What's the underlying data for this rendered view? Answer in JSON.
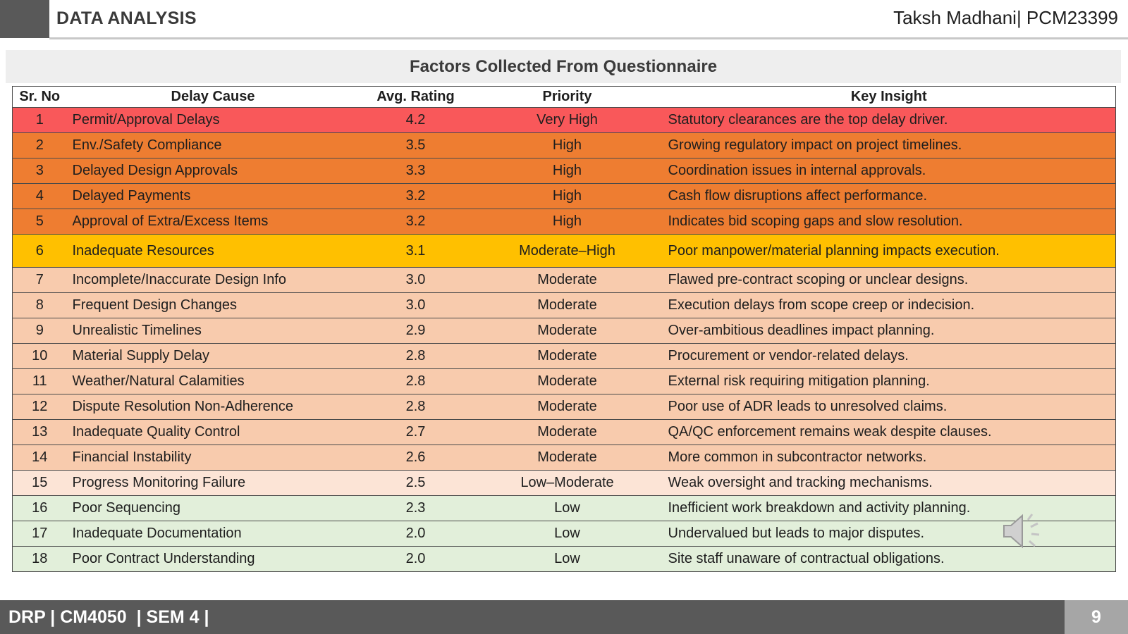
{
  "header": {
    "title": "DATA ANALYSIS",
    "author": "Taksh Madhani| PCM23399"
  },
  "table": {
    "caption": "Factors Collected From Questionnaire",
    "columns": {
      "sr_no": "Sr. No",
      "delay_cause": "Delay Cause",
      "avg_rating": "Avg. Rating",
      "priority": "Priority",
      "key_insight": "Key Insight"
    },
    "row_colors": {
      "very_high": "#f9585a",
      "high": "#ee7d31",
      "moderate_high": "#ffc000",
      "moderate": "#f8cbad",
      "low_moderate": "#fce4d6",
      "low": "#e2efda"
    },
    "rows": [
      {
        "no": "1",
        "cause": "Permit/Approval Delays",
        "rating": "4.2",
        "priority": "Very High",
        "insight": "Statutory clearances are the top delay driver.",
        "level": "very_high"
      },
      {
        "no": "2",
        "cause": "Env./Safety Compliance",
        "rating": "3.5",
        "priority": "High",
        "insight": "Growing regulatory impact on project timelines.",
        "level": "high"
      },
      {
        "no": "3",
        "cause": "Delayed Design Approvals",
        "rating": "3.3",
        "priority": "High",
        "insight": "Coordination issues in internal approvals.",
        "level": "high"
      },
      {
        "no": "4",
        "cause": "Delayed Payments",
        "rating": "3.2",
        "priority": "High",
        "insight": "Cash flow disruptions affect performance.",
        "level": "high"
      },
      {
        "no": "5",
        "cause": "Approval of Extra/Excess Items",
        "rating": "3.2",
        "priority": "High",
        "insight": "Indicates bid scoping gaps and slow resolution.",
        "level": "high"
      },
      {
        "no": "6",
        "cause": "Inadequate Resources",
        "rating": "3.1",
        "priority": "Moderate–High",
        "insight": "Poor manpower/material planning impacts execution.",
        "level": "moderate_high"
      },
      {
        "no": "7",
        "cause": "Incomplete/Inaccurate Design Info",
        "rating": "3.0",
        "priority": "Moderate",
        "insight": "Flawed pre-contract scoping or unclear designs.",
        "level": "moderate"
      },
      {
        "no": "8",
        "cause": "Frequent Design Changes",
        "rating": "3.0",
        "priority": "Moderate",
        "insight": "Execution delays from scope creep or indecision.",
        "level": "moderate"
      },
      {
        "no": "9",
        "cause": "Unrealistic Timelines",
        "rating": "2.9",
        "priority": "Moderate",
        "insight": "Over-ambitious deadlines impact planning.",
        "level": "moderate"
      },
      {
        "no": "10",
        "cause": "Material Supply Delay",
        "rating": "2.8",
        "priority": "Moderate",
        "insight": "Procurement or vendor-related delays.",
        "level": "moderate"
      },
      {
        "no": "11",
        "cause": "Weather/Natural Calamities",
        "rating": "2.8",
        "priority": "Moderate",
        "insight": "External risk requiring mitigation planning.",
        "level": "moderate"
      },
      {
        "no": "12",
        "cause": "Dispute Resolution Non-Adherence",
        "rating": "2.8",
        "priority": "Moderate",
        "insight": "Poor use of ADR leads to unresolved claims.",
        "level": "moderate"
      },
      {
        "no": "13",
        "cause": "Inadequate Quality Control",
        "rating": "2.7",
        "priority": "Moderate",
        "insight": "QA/QC enforcement remains weak despite clauses.",
        "level": "moderate"
      },
      {
        "no": "14",
        "cause": "Financial Instability",
        "rating": "2.6",
        "priority": "Moderate",
        "insight": "More common in subcontractor networks.",
        "level": "moderate"
      },
      {
        "no": "15",
        "cause": "Progress Monitoring Failure",
        "rating": "2.5",
        "priority": "Low–Moderate",
        "insight": "Weak oversight and tracking mechanisms.",
        "level": "low_moderate"
      },
      {
        "no": "16",
        "cause": "Poor Sequencing",
        "rating": "2.3",
        "priority": "Low",
        "insight": "Inefficient work breakdown and activity planning.",
        "level": "low"
      },
      {
        "no": "17",
        "cause": "Inadequate Documentation",
        "rating": "2.0",
        "priority": "Low",
        "insight": "Undervalued but leads to major disputes.",
        "level": "low"
      },
      {
        "no": "18",
        "cause": "Poor Contract Understanding",
        "rating": "2.0",
        "priority": "Low",
        "insight": "Site staff unaware of contractual obligations.",
        "level": "low"
      }
    ]
  },
  "footer": {
    "label": "DRP | CM4050  | SEM 4 |",
    "page_number": "9"
  },
  "audio": {
    "icon": "speaker-icon"
  }
}
